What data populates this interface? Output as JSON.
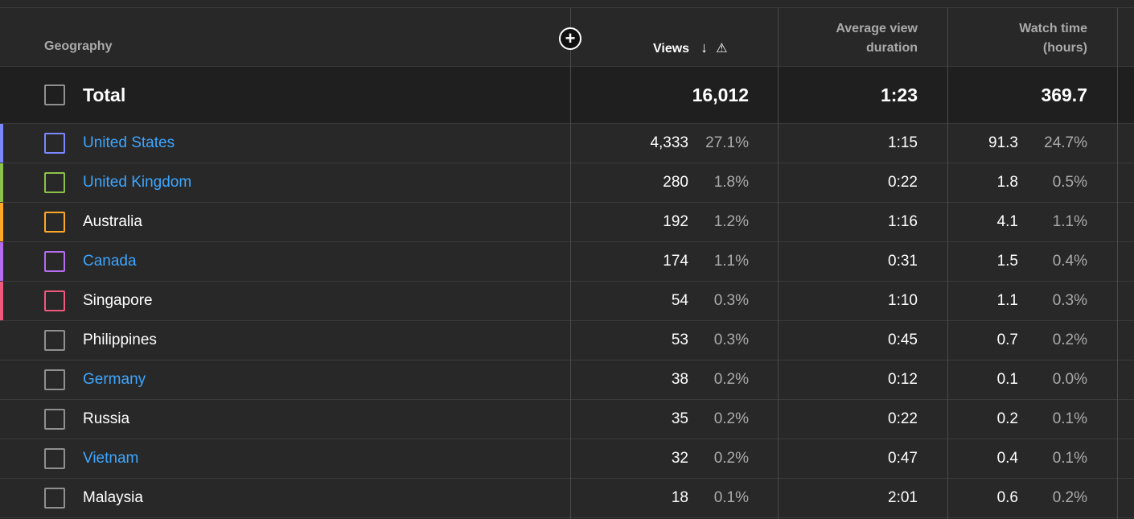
{
  "header": {
    "geography": "Geography",
    "views": "Views",
    "avg_view_duration_1": "Average view",
    "avg_view_duration_2": "duration",
    "watch_time_1": "Watch time",
    "watch_time_2": "(hours)",
    "sort_icon": "↓",
    "warning_icon": "⚠",
    "add_icon": "+"
  },
  "total": {
    "label": "Total",
    "views": "16,012",
    "avg_duration": "1:23",
    "watch_time": "369.7"
  },
  "rows": [
    {
      "country": "United States",
      "link": true,
      "color": "#7b86ff",
      "views": "4,333",
      "views_pct": "27.1%",
      "avg": "1:15",
      "watch": "91.3",
      "watch_pct": "24.7%"
    },
    {
      "country": "United Kingdom",
      "link": true,
      "color": "#8bc34a",
      "views": "280",
      "views_pct": "1.8%",
      "avg": "0:22",
      "watch": "1.8",
      "watch_pct": "0.5%"
    },
    {
      "country": "Australia",
      "link": false,
      "color": "#ffa726",
      "views": "192",
      "views_pct": "1.2%",
      "avg": "1:16",
      "watch": "4.1",
      "watch_pct": "1.1%"
    },
    {
      "country": "Canada",
      "link": true,
      "color": "#b46cf0",
      "views": "174",
      "views_pct": "1.1%",
      "avg": "0:31",
      "watch": "1.5",
      "watch_pct": "0.4%"
    },
    {
      "country": "Singapore",
      "link": false,
      "color": "#f0587c",
      "views": "54",
      "views_pct": "0.3%",
      "avg": "1:10",
      "watch": "1.1",
      "watch_pct": "0.3%"
    },
    {
      "country": "Philippines",
      "link": false,
      "color": "",
      "views": "53",
      "views_pct": "0.3%",
      "avg": "0:45",
      "watch": "0.7",
      "watch_pct": "0.2%"
    },
    {
      "country": "Germany",
      "link": true,
      "color": "",
      "views": "38",
      "views_pct": "0.2%",
      "avg": "0:12",
      "watch": "0.1",
      "watch_pct": "0.0%"
    },
    {
      "country": "Russia",
      "link": false,
      "color": "",
      "views": "35",
      "views_pct": "0.2%",
      "avg": "0:22",
      "watch": "0.2",
      "watch_pct": "0.1%"
    },
    {
      "country": "Vietnam",
      "link": true,
      "color": "",
      "views": "32",
      "views_pct": "0.2%",
      "avg": "0:47",
      "watch": "0.4",
      "watch_pct": "0.1%"
    },
    {
      "country": "Malaysia",
      "link": false,
      "color": "",
      "views": "18",
      "views_pct": "0.1%",
      "avg": "2:01",
      "watch": "0.6",
      "watch_pct": "0.2%"
    }
  ]
}
